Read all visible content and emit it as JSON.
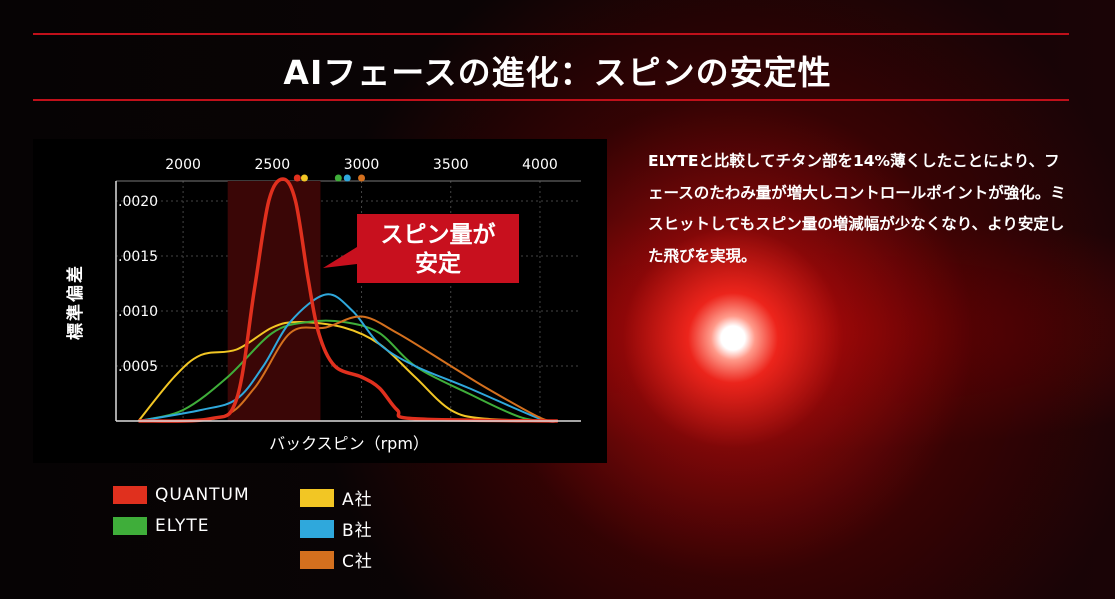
{
  "title": "AIフェースの進化：スピンの安定性",
  "description": "ELYTEと比較してチタン部を14%薄くしたことにより、フェースのたわみ量が増大しコントロールポイントが強化。ミスヒットしてもスピン量の増減幅が少なくなり、より安定した飛びを実現。",
  "chart_data": {
    "type": "line",
    "xlabel": "バックスピン（rpm）",
    "ylabel": "標準偏差",
    "x_ticks": [
      "2000",
      "2500",
      "3000",
      "3500",
      "4000"
    ],
    "x_tick_values": [
      2000,
      2500,
      3000,
      3500,
      4000
    ],
    "y_ticks": [
      ".0005",
      ".0010",
      ".0015",
      ".0020"
    ],
    "y_tick_values": [
      0.0005,
      0.001,
      0.0015,
      0.002
    ],
    "xlim": [
      1624,
      4230
    ],
    "ylim": [
      0,
      0.0022
    ],
    "grid": true,
    "highlight_range": [
      2250,
      2770
    ],
    "annotation": {
      "line1": "スピン量が",
      "line2": "安定"
    },
    "legend_position": "bottom",
    "series": [
      {
        "name": "QUANTUM",
        "color": "#e0301e",
        "peak_marker": 2640,
        "x": [
          1750,
          2150,
          2300,
          2400,
          2480,
          2560,
          2630,
          2700,
          2760,
          2850,
          3000,
          3100,
          3200,
          3300,
          4100
        ],
        "y": [
          0,
          2e-05,
          0.0002,
          0.0012,
          0.002,
          0.0022,
          0.002,
          0.0013,
          0.0008,
          0.0005,
          0.0004,
          0.0003,
          0.0001,
          2e-05,
          0
        ]
      },
      {
        "name": "ELYTE",
        "color": "#3fae3a",
        "peak_marker": 2870,
        "x": [
          1750,
          2000,
          2250,
          2500,
          2700,
          2900,
          3100,
          3300,
          3600,
          3900,
          4100
        ],
        "y": [
          0,
          0.0001,
          0.0004,
          0.0008,
          0.0009,
          0.0009,
          0.0008,
          0.0005,
          0.00025,
          3e-05,
          0
        ]
      },
      {
        "name": "A社",
        "color": "#f2c624",
        "peak_marker": 2680,
        "x": [
          1750,
          1950,
          2100,
          2300,
          2500,
          2650,
          2900,
          3100,
          3300,
          3500,
          3700,
          4100
        ],
        "y": [
          0,
          0.0004,
          0.0006,
          0.00065,
          0.00085,
          0.0009,
          0.00085,
          0.0007,
          0.0004,
          0.0001,
          2e-05,
          0
        ]
      },
      {
        "name": "B社",
        "color": "#2fa8dc",
        "peak_marker": 2920,
        "x": [
          1750,
          2100,
          2300,
          2450,
          2600,
          2800,
          2950,
          3100,
          3300,
          3600,
          4000,
          4100
        ],
        "y": [
          0,
          0.0001,
          0.0002,
          0.0005,
          0.0009,
          0.00115,
          0.001,
          0.0007,
          0.0005,
          0.0003,
          2e-05,
          0
        ]
      },
      {
        "name": "C社",
        "color": "#d4701e",
        "peak_marker": 3000,
        "x": [
          1750,
          2200,
          2400,
          2600,
          2800,
          3000,
          3200,
          3500,
          3700,
          4000,
          4100
        ],
        "y": [
          0,
          3e-05,
          0.0003,
          0.0008,
          0.00085,
          0.00095,
          0.0008,
          0.0005,
          0.0003,
          3e-05,
          0
        ]
      }
    ]
  }
}
